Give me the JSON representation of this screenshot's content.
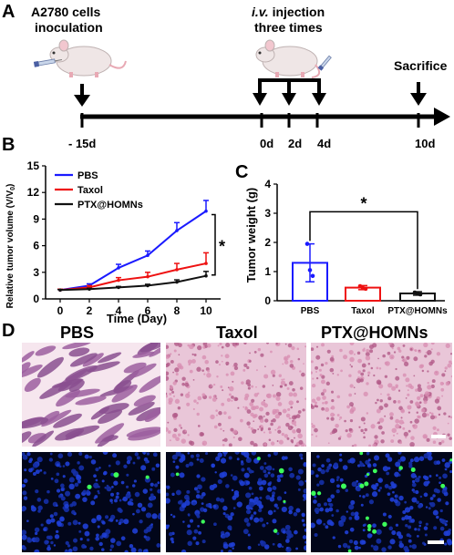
{
  "panels": {
    "a": "A",
    "b": "B",
    "c": "C",
    "d": "D"
  },
  "timeline": {
    "inoculation_line1": "A2780 cells",
    "inoculation_line2": "inoculation",
    "injection_italic": "i.v.",
    "injection_rest": " injection",
    "injection_line2": "three times",
    "sacrifice": "Sacrifice",
    "days": [
      "- 15d",
      "0d",
      "2d",
      "4d",
      "10d"
    ]
  },
  "colors": {
    "pbs": "#1a1aff",
    "taxol": "#ee1111",
    "ptx": "#111111",
    "he_bg": "#f3dfea",
    "if_bg": "#02061a"
  },
  "icons": [
    "mouse-icon",
    "syringe-icon"
  ],
  "chart_data": [
    {
      "type": "line",
      "ylabel_main": "Relative tumor volume (V/V",
      "ylabel_sub": "0",
      "ylabel_end": ")",
      "xlabel": "Time (Day)",
      "x": [
        0,
        2,
        4,
        6,
        8,
        10
      ],
      "xticks": [
        "0",
        "2",
        "4",
        "6",
        "8",
        "10"
      ],
      "yticks": [
        "0",
        "3",
        "6",
        "9",
        "12",
        "15"
      ],
      "ylim": [
        0,
        15
      ],
      "xlim": [
        -1,
        11
      ],
      "series": [
        {
          "name": "PBS",
          "values": [
            1.0,
            1.5,
            3.5,
            4.9,
            7.7,
            9.9
          ],
          "errors": [
            0.1,
            0.2,
            0.4,
            0.5,
            0.9,
            1.2
          ]
        },
        {
          "name": "Taxol",
          "values": [
            1.0,
            1.3,
            2.1,
            2.5,
            3.3,
            4.0
          ],
          "errors": [
            0.1,
            0.2,
            0.3,
            0.5,
            0.7,
            1.2
          ]
        },
        {
          "name": "PTX@HOMNs",
          "values": [
            1.0,
            1.1,
            1.3,
            1.5,
            1.9,
            2.6
          ],
          "errors": [
            0.05,
            0.1,
            0.1,
            0.15,
            0.25,
            0.5
          ]
        }
      ],
      "significance": "*"
    },
    {
      "type": "bar",
      "ylabel": "Tumor weight (g)",
      "categories": [
        "PBS",
        "Taxol",
        "PTX@HOMNs"
      ],
      "values": [
        1.3,
        0.45,
        0.25
      ],
      "errors": [
        0.65,
        0.07,
        0.06
      ],
      "points": [
        [
          1.95,
          1.05,
          0.85
        ],
        [
          0.5,
          0.44,
          0.41
        ],
        [
          0.28,
          0.25,
          0.22
        ]
      ],
      "yticks": [
        "0",
        "1",
        "2",
        "3",
        "4"
      ],
      "ylim": [
        0,
        4
      ],
      "significance": "*"
    }
  ],
  "histology": {
    "headers": [
      "PBS",
      "Taxol",
      "PTX@HOMNs"
    ]
  }
}
